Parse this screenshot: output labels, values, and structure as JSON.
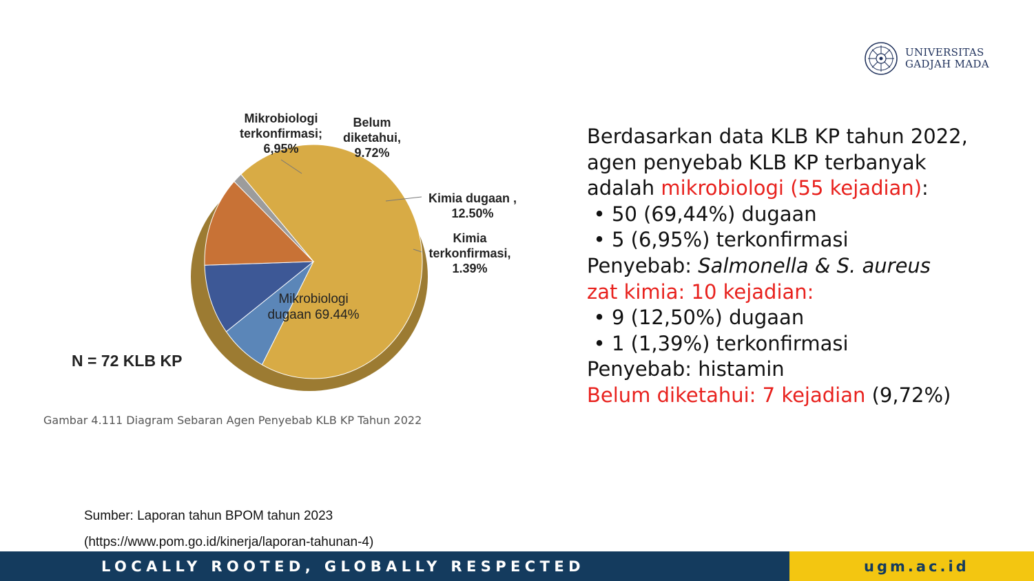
{
  "logo": {
    "line1": "UNIVERSITAS",
    "line2": "GADJAH MADA"
  },
  "chart_data": {
    "type": "pie",
    "slices": [
      {
        "label": "Mikrobiologi dugaan",
        "value": 69.44,
        "display": "Mikrobiologi\ndugaan 69.44%",
        "color": "#d8ab45"
      },
      {
        "label": "Mikrobiologi terkonfirmasi",
        "value": 6.95,
        "display": "Mikrobiologi\nterkonfirmasi;\n6,95%",
        "color": "#5b86b8"
      },
      {
        "label": "Belum diketahui",
        "value": 9.72,
        "display": "Belum\ndiketahui,\n9.72%",
        "color": "#3d5896"
      },
      {
        "label": "Kimia dugaan",
        "value": 12.5,
        "display": "Kimia dugaan ,\n12.50%",
        "color": "#c87236"
      },
      {
        "label": "Kimia terkonfirmasi",
        "value": 1.39,
        "display": "Kimia\nterkonfirmasi,\n1.39%",
        "color": "#9c9c9c"
      }
    ]
  },
  "chart_note": "N = 72 KLB KP",
  "caption": "Gambar 4.111 Diagram Sebaran Agen Penyebab KLB KP Tahun 2022",
  "explain": {
    "line1": "Berdasarkan data KLB KP tahun 2022,",
    "line2": "agen penyebab KLB KP terbanyak",
    "line3_a": "adalah ",
    "line3_red": "mikrobiologi (55 kejadian)",
    "line3_b": ":",
    "bullet_dot": "•",
    "b1": "50 (69,44%) dugaan",
    "b2": "5 (6,95%) terkonfirmasi",
    "cause1_a": "Penyebab: ",
    "cause1_i": "Salmonella & S. aureus",
    "chem_red": "zat kimia: 10 kejadian:",
    "b3": "9 (12,50%) dugaan",
    "b4": "1 (1,39%) terkonfirmasi",
    "cause2": "Penyebab: histamin",
    "unknown_red": "Belum diketahui: 7 kejadian",
    "unknown_b": " (9,72%)"
  },
  "source": {
    "line1": "Sumber: Laporan tahun BPOM tahun 2023",
    "line2": "(https://www.pom.go.id/kinerja/laporan-tahunan-4)"
  },
  "footer": {
    "slogan": "LOCALLY ROOTED, GLOBALLY RESPECTED",
    "site": "ugm.ac.id"
  }
}
